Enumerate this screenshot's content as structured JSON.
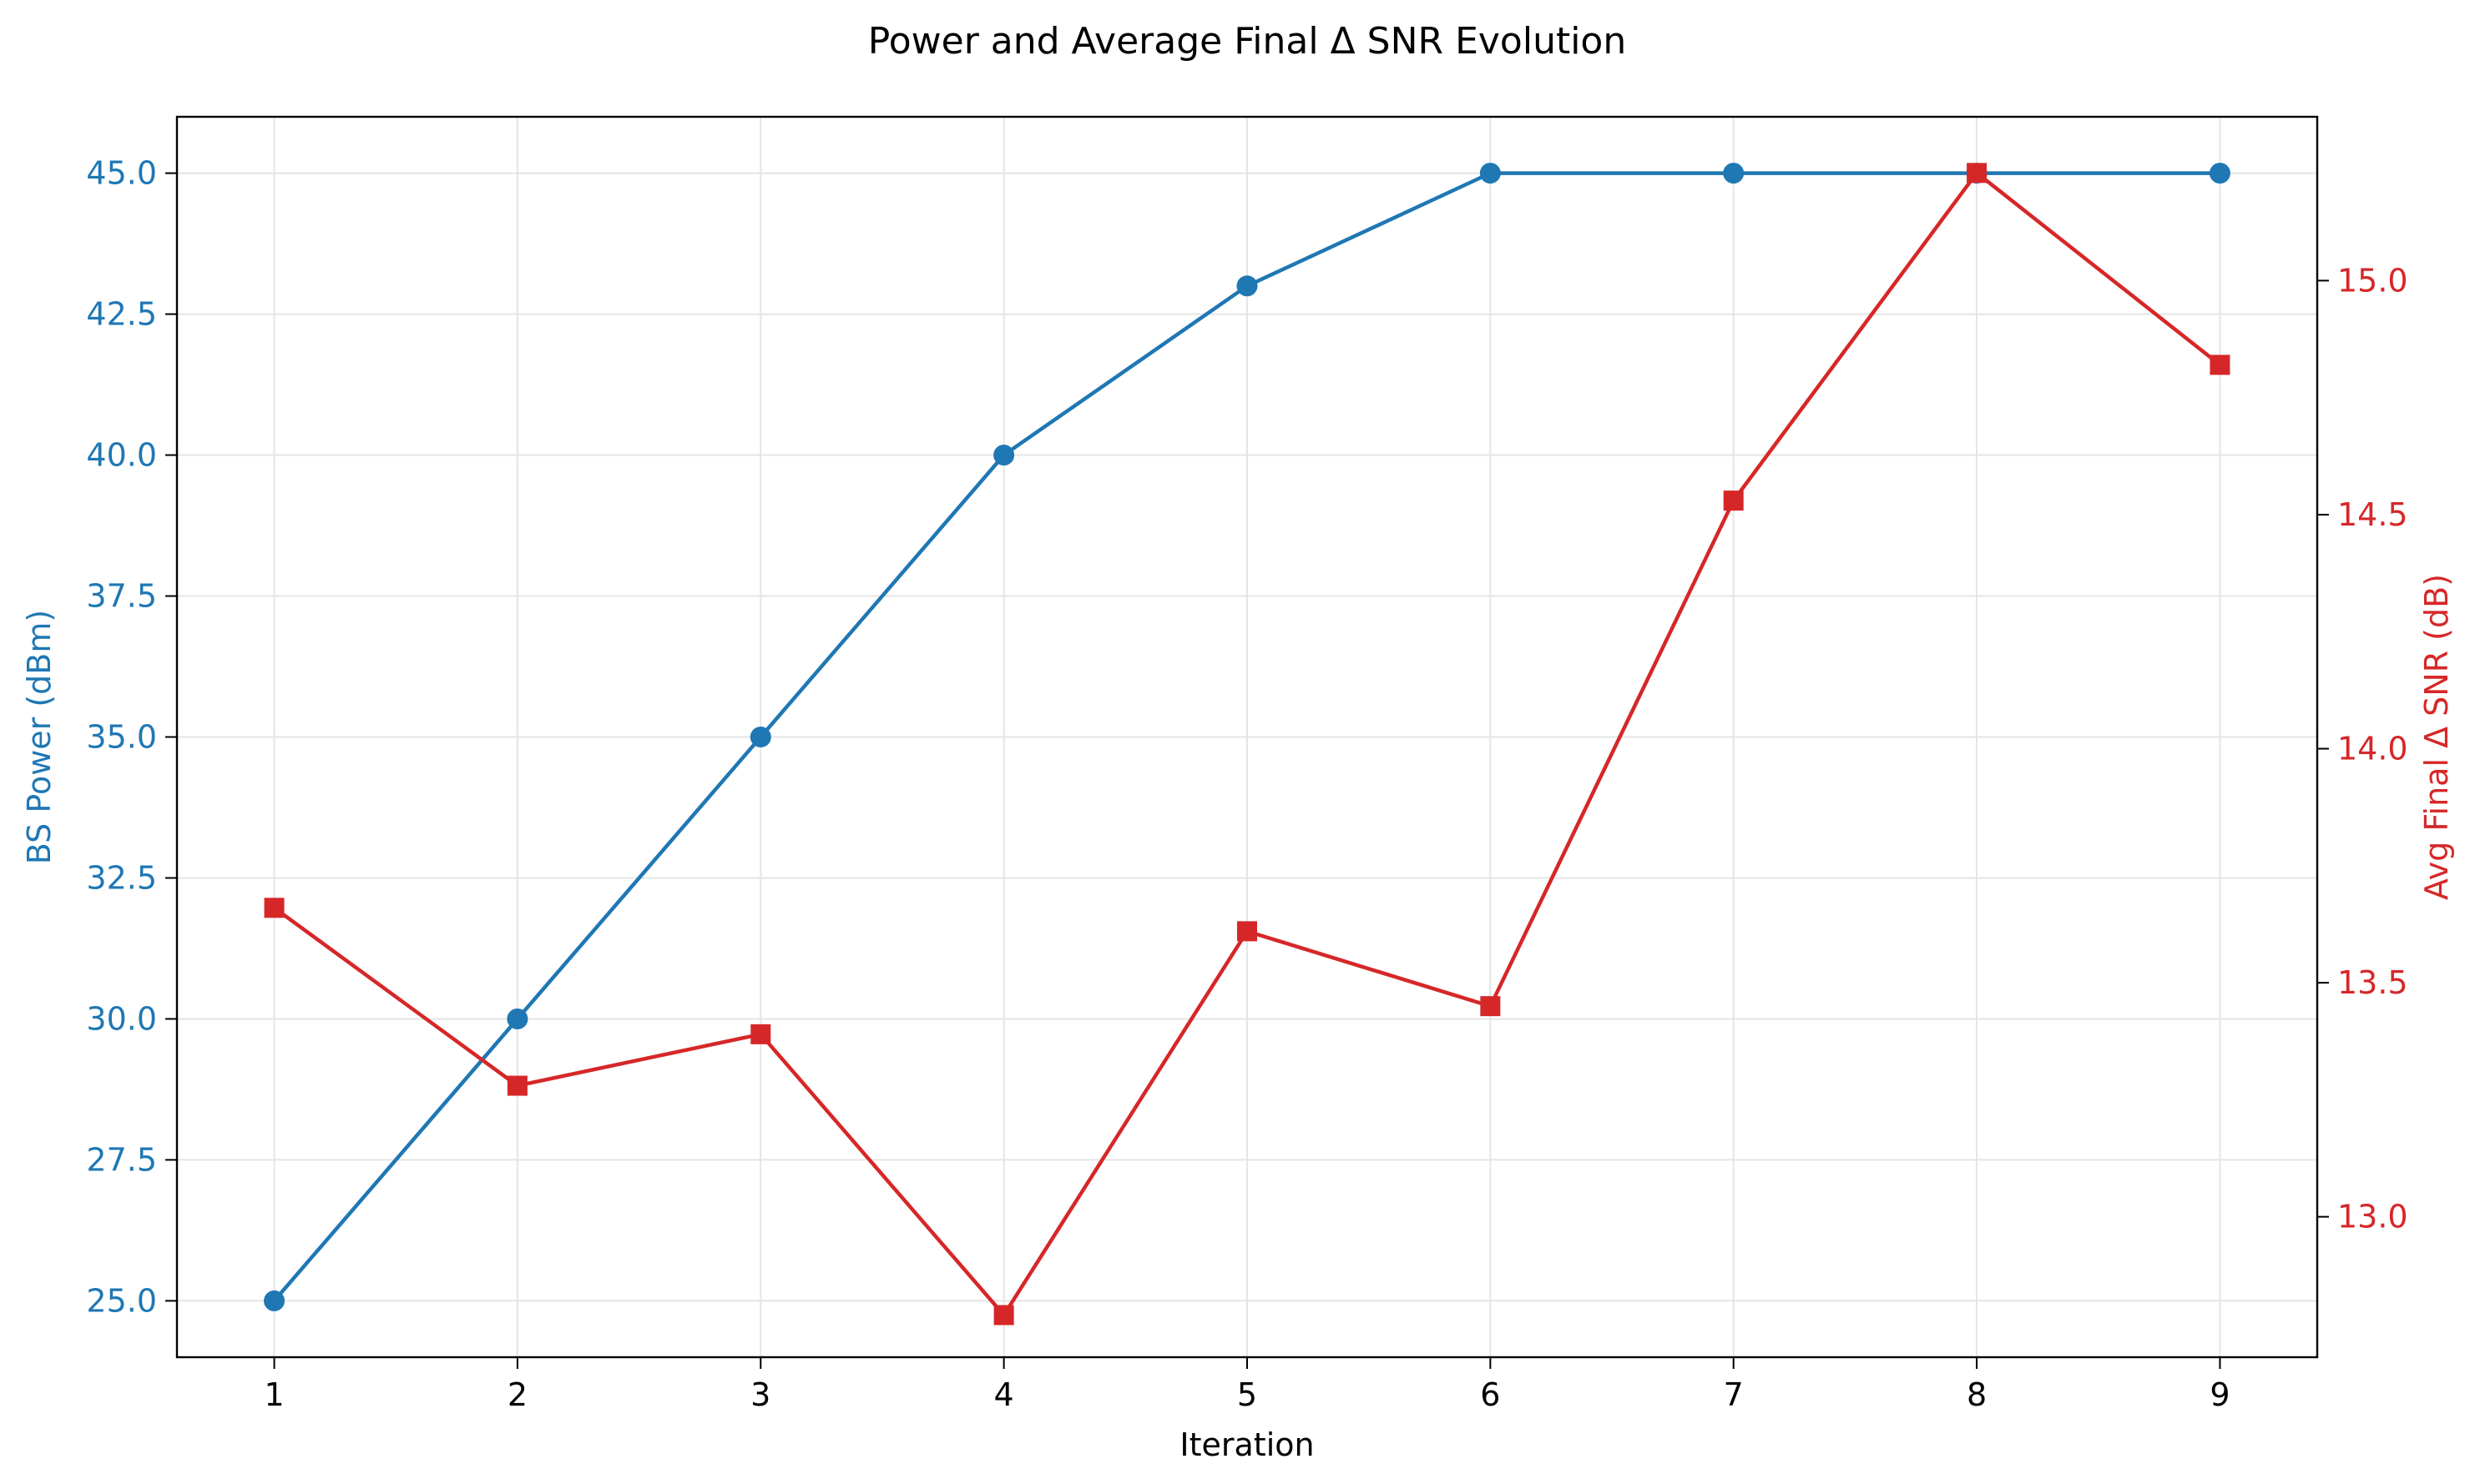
{
  "chart_data": {
    "type": "line",
    "title": "Power and Average Final Δ SNR Evolution",
    "xlabel": "Iteration",
    "ylabel_left": "BS Power (dBm)",
    "ylabel_right": "Avg Final Δ SNR (dB)",
    "x": [
      1,
      2,
      3,
      4,
      5,
      6,
      7,
      8,
      9
    ],
    "xlim": [
      0.6,
      9.4
    ],
    "ylim_left": [
      24.0,
      46.0
    ],
    "ylim_right": [
      12.7,
      15.35
    ],
    "xticks": [
      "1",
      "2",
      "3",
      "4",
      "5",
      "6",
      "7",
      "8",
      "9"
    ],
    "yticks_left": [
      "25.0",
      "27.5",
      "30.0",
      "32.5",
      "35.0",
      "37.5",
      "40.0",
      "42.5",
      "45.0"
    ],
    "yticks_right": [
      "13.0",
      "13.5",
      "14.0",
      "14.5",
      "15.0"
    ],
    "grid": true,
    "series": [
      {
        "name": "BS Power (dBm)",
        "axis": "left",
        "marker": "circle",
        "color": "#1f77b4",
        "values": [
          25.0,
          30.0,
          35.0,
          40.0,
          43.0,
          45.0,
          45.0,
          45.0,
          45.0
        ]
      },
      {
        "name": "Avg Final Δ SNR (dB)",
        "axis": "right",
        "marker": "square",
        "color": "#d62728",
        "values": [
          13.66,
          13.28,
          13.39,
          12.79,
          13.61,
          13.45,
          14.53,
          15.23,
          14.82
        ]
      }
    ]
  }
}
